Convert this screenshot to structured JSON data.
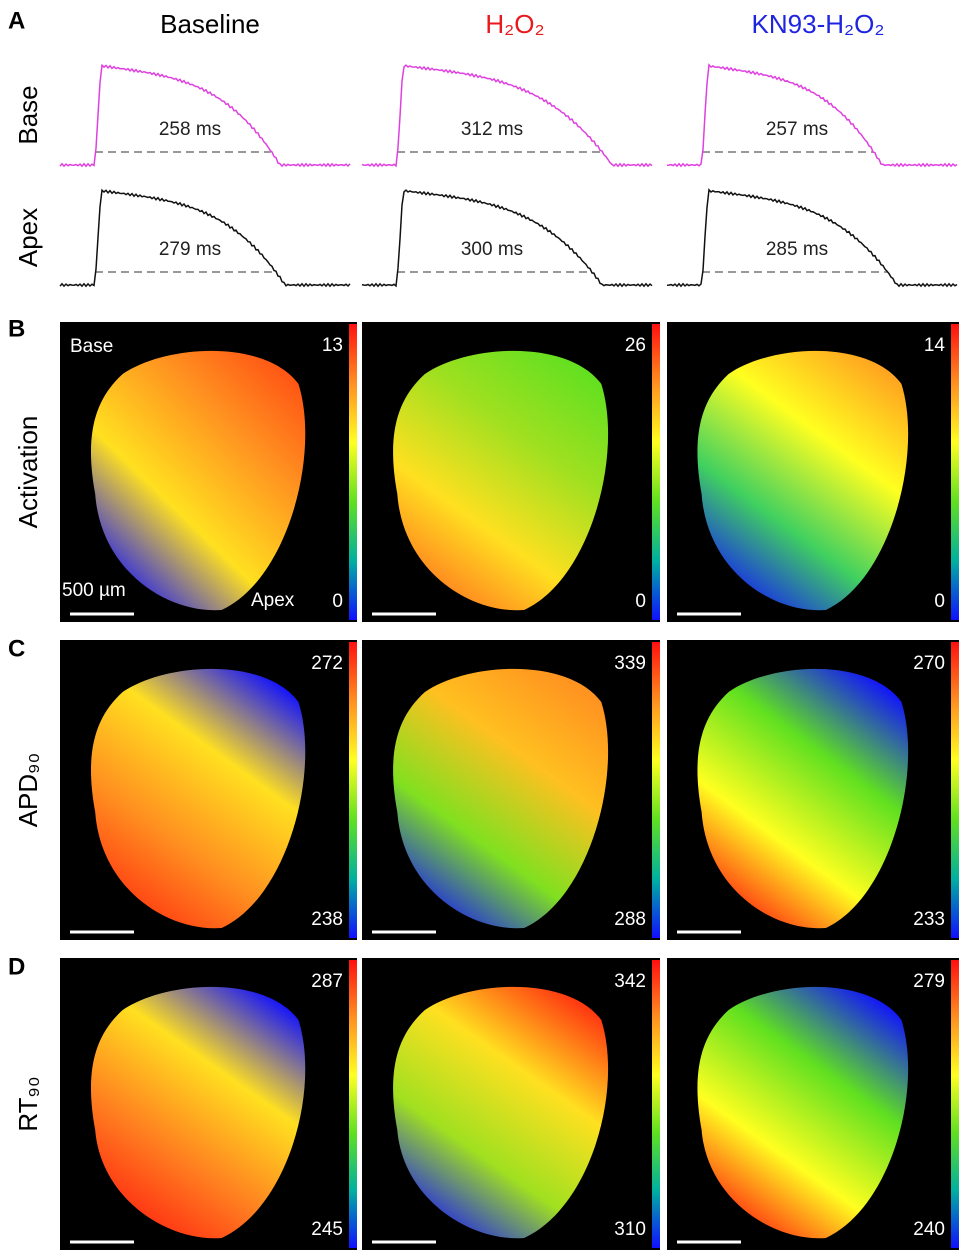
{
  "panel_labels": [
    "A",
    "B",
    "C",
    "D"
  ],
  "columns": [
    {
      "title": "Baseline",
      "color": "#000000"
    },
    {
      "title": "H₂O₂",
      "color": "#e8191c"
    },
    {
      "title": "KN93-H₂O₂",
      "color": "#1f24e0"
    }
  ],
  "traces": {
    "rows": [
      {
        "label": "Base",
        "color": "#e040e0",
        "durations": [
          "258 ms",
          "312 ms",
          "257 ms"
        ]
      },
      {
        "label": "Apex",
        "color": "#111111",
        "durations": [
          "279 ms",
          "300 ms",
          "285 ms"
        ]
      }
    ]
  },
  "maps": [
    {
      "row_label": "Activation",
      "max": [
        "13",
        "26",
        "14"
      ],
      "min": [
        "0",
        "0",
        "0"
      ]
    },
    {
      "row_label": "APD₉₀",
      "max": [
        "272",
        "339",
        "270"
      ],
      "min": [
        "238",
        "288",
        "233"
      ]
    },
    {
      "row_label": "RT₉₀",
      "max": [
        "287",
        "342",
        "279"
      ],
      "min": [
        "245",
        "310",
        "240"
      ]
    }
  ],
  "annotations": {
    "base": "Base",
    "apex": "Apex",
    "scale_bar": "500 µm"
  }
}
